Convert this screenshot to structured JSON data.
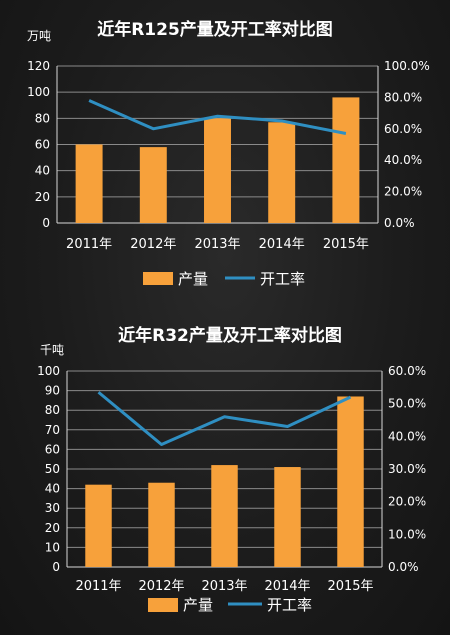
{
  "colors": {
    "bar": "#f7a13b",
    "line": "#2f8fc2",
    "axis": "#d8d8d8",
    "grid": "#8a8a8a"
  },
  "chart_data": [
    {
      "type": "bar",
      "title": "近年R125产量及开工率对比图",
      "unit_label": "万吨",
      "categories": [
        "2011年",
        "2012年",
        "2013年",
        "2014年",
        "2015年"
      ],
      "series": [
        {
          "name": "产量",
          "type": "bar",
          "axis": "left",
          "values": [
            60,
            58,
            80,
            77,
            96
          ]
        },
        {
          "name": "开工率",
          "type": "line",
          "axis": "right",
          "values": [
            78,
            60,
            68,
            65,
            57
          ]
        }
      ],
      "ylim": [
        0,
        120
      ],
      "yticks": [
        "0",
        "20",
        "40",
        "60",
        "80",
        "100",
        "120"
      ],
      "y2lim": [
        0,
        100
      ],
      "y2ticks": [
        "0.0%",
        "20.0%",
        "40.0%",
        "60.0%",
        "80.0%",
        "100.0%"
      ],
      "grid": true,
      "legend_position": "bottom"
    },
    {
      "type": "bar",
      "title": "近年R32产量及开工率对比图",
      "unit_label": "千吨",
      "categories": [
        "2011年",
        "2012年",
        "2013年",
        "2014年",
        "2015年"
      ],
      "series": [
        {
          "name": "产量",
          "type": "bar",
          "axis": "left",
          "values": [
            42,
            43,
            52,
            51,
            87
          ]
        },
        {
          "name": "开工率",
          "type": "line",
          "axis": "right",
          "values": [
            53.5,
            37.5,
            46,
            43,
            52
          ]
        }
      ],
      "ylim": [
        0,
        100
      ],
      "yticks": [
        "0",
        "10",
        "20",
        "30",
        "40",
        "50",
        "60",
        "70",
        "80",
        "90",
        "100"
      ],
      "y2lim": [
        0,
        60
      ],
      "y2ticks": [
        "0.0%",
        "10.0%",
        "20.0%",
        "30.0%",
        "40.0%",
        "50.0%",
        "60.0%"
      ],
      "grid": true,
      "legend_position": "bottom"
    }
  ]
}
